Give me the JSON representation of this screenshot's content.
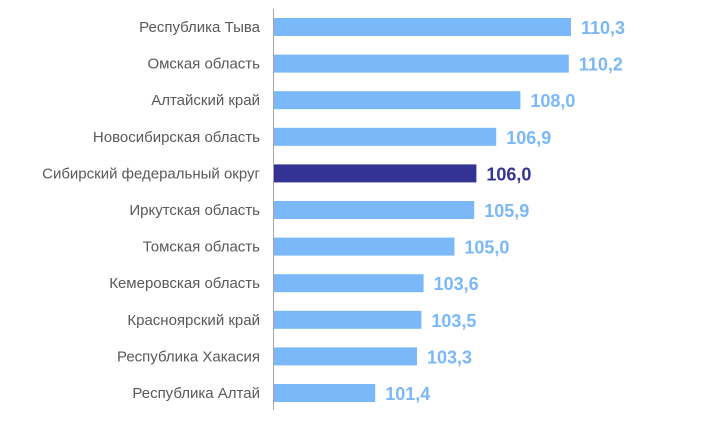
{
  "chart_data": {
    "type": "bar",
    "orientation": "horizontal",
    "categories": [
      "Республика Тыва",
      "Омская область",
      "Алтайский край",
      "Новосибирская область",
      "Сибирский федеральный округ",
      "Иркутская область",
      "Томская область",
      "Кемеровская область",
      "Красноярский край",
      "Республика Хакасия",
      "Республика Алтай"
    ],
    "values": [
      110.3,
      110.2,
      108.0,
      106.9,
      106.0,
      105.9,
      105.0,
      103.6,
      103.5,
      103.3,
      101.4
    ],
    "value_labels": [
      "110,3",
      "110,2",
      "108,0",
      "106,9",
      "106,0",
      "105,9",
      "105,0",
      "103,6",
      "103,5",
      "103,3",
      "101,4"
    ],
    "highlight_category": "Сибирский федеральный округ",
    "xlim": [
      96.8,
      110.8
    ],
    "title": "",
    "xlabel": "",
    "ylabel": "",
    "grid": false,
    "colors": {
      "bar": "#7bb8f9",
      "bar_highlight": "#333393",
      "label_text": "#595959",
      "value_text": "#7bb8f9",
      "value_text_highlight": "#333393",
      "axis": "#a6a6a6"
    }
  }
}
